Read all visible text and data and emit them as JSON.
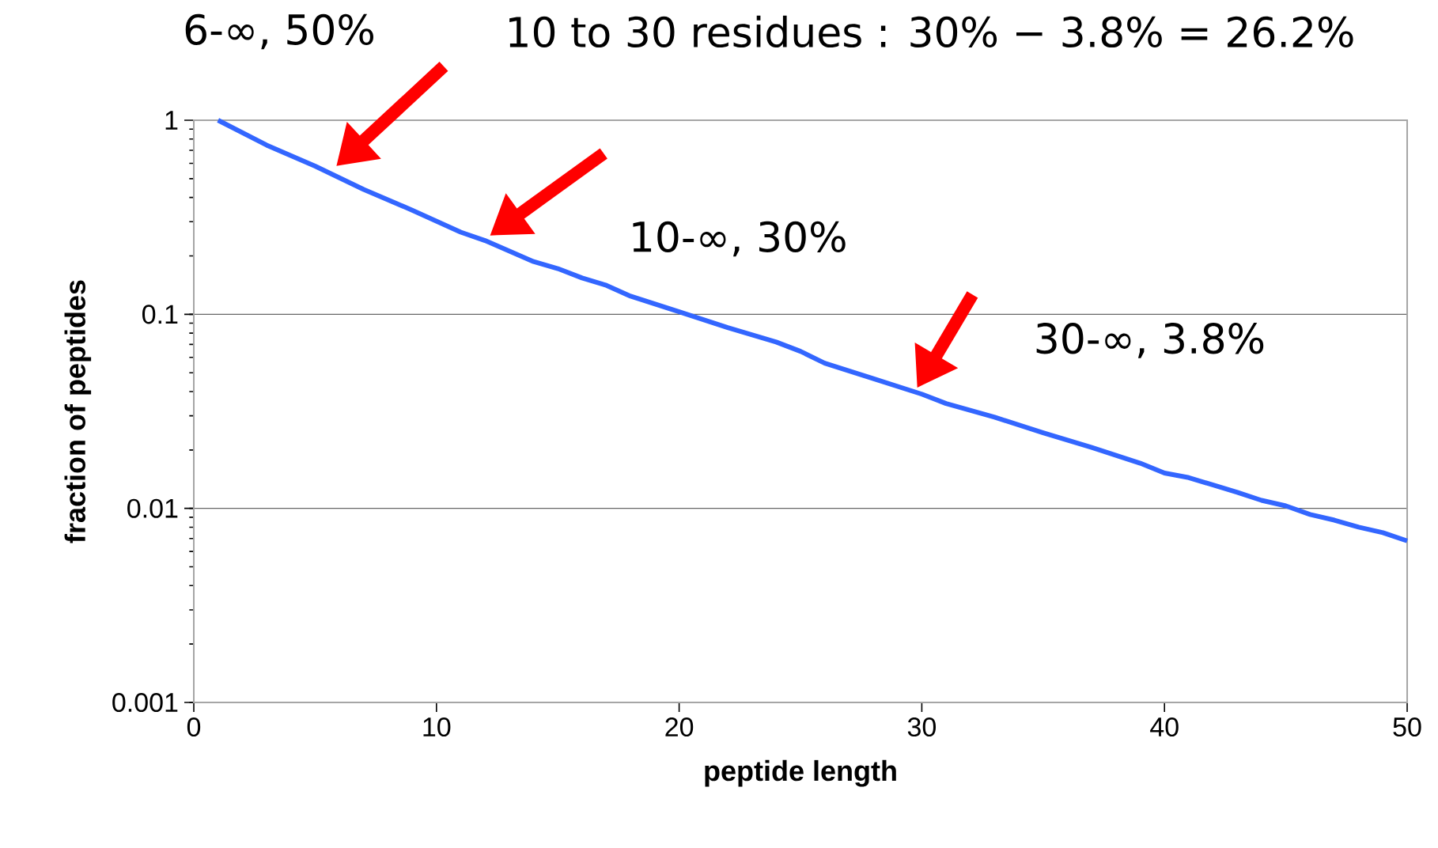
{
  "chart_data": {
    "type": "line",
    "xlabel": "peptide length",
    "ylabel": "fraction of peptides",
    "log": "y",
    "grid": "y",
    "xlim": [
      0,
      50
    ],
    "ylim": [
      0.001,
      1
    ],
    "xticks": [
      0,
      10,
      20,
      30,
      40,
      50
    ],
    "yticks": [
      0.001,
      0.01,
      0.1,
      1
    ],
    "x": [
      1,
      3,
      5,
      7,
      9,
      11,
      12,
      14,
      15,
      16,
      17,
      18,
      20,
      22,
      24,
      25,
      26,
      28,
      30,
      31,
      33,
      35,
      37,
      39,
      40,
      41,
      43,
      44,
      45,
      46,
      47,
      48,
      49,
      50
    ],
    "series": [
      {
        "color": "#3366ff",
        "values": [
          1.0,
          0.745,
          0.58,
          0.44,
          0.344,
          0.265,
          0.24,
          0.187,
          0.172,
          0.154,
          0.141,
          0.124,
          0.103,
          0.0855,
          0.072,
          0.0645,
          0.056,
          0.0466,
          0.0388,
          0.0347,
          0.0295,
          0.0245,
          0.0206,
          0.0171,
          0.0152,
          0.0144,
          0.0121,
          0.011,
          0.0103,
          0.0093,
          0.0087,
          0.008,
          0.0075,
          0.0068
        ]
      }
    ],
    "annotations": [
      "6-∞, 50%",
      "10-∞, 30%",
      {
        "text": "30-∞, 3.8%",
        "x": 30,
        "y": 0.038
      },
      "10 to 30 residues : 30% − 3.8% = 26.2%"
    ]
  }
}
